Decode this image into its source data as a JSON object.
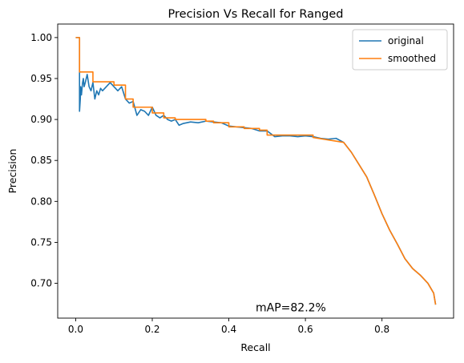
{
  "chart_data": {
    "type": "line",
    "title": "Precision Vs Recall for Ranged",
    "xlabel": "Recall",
    "ylabel": "Precision",
    "xlim": [
      -0.047,
      0.987
    ],
    "ylim": [
      0.6575,
      1.0165
    ],
    "x_ticks": [
      0.0,
      0.2,
      0.4,
      0.6,
      0.8
    ],
    "x_tick_labels": [
      "0.0",
      "0.2",
      "0.4",
      "0.6",
      "0.8"
    ],
    "y_ticks": [
      0.7,
      0.75,
      0.8,
      0.85,
      0.9,
      0.95,
      1.0
    ],
    "y_tick_labels": [
      "0.70",
      "0.75",
      "0.80",
      "0.85",
      "0.90",
      "0.95",
      "1.00"
    ],
    "grid": false,
    "legend_position": "top-right",
    "annotation": {
      "text": "mAP=82.2%",
      "x": 0.47,
      "y": 0.666
    },
    "series": [
      {
        "name": "original",
        "color": "#1f77b4",
        "x": [
          0.0,
          0.01,
          0.01,
          0.012,
          0.013,
          0.015,
          0.018,
          0.02,
          0.022,
          0.025,
          0.03,
          0.035,
          0.04,
          0.045,
          0.05,
          0.055,
          0.06,
          0.065,
          0.07,
          0.08,
          0.09,
          0.1,
          0.11,
          0.12,
          0.13,
          0.14,
          0.15,
          0.16,
          0.17,
          0.18,
          0.19,
          0.2,
          0.21,
          0.22,
          0.23,
          0.24,
          0.25,
          0.26,
          0.27,
          0.28,
          0.3,
          0.32,
          0.34,
          0.36,
          0.38,
          0.4,
          0.42,
          0.44,
          0.46,
          0.48,
          0.5,
          0.52,
          0.54,
          0.56,
          0.58,
          0.6,
          0.62,
          0.64,
          0.66,
          0.68,
          0.7,
          0.72,
          0.74,
          0.76,
          0.78,
          0.8,
          0.82,
          0.84,
          0.86,
          0.88,
          0.9,
          0.92,
          0.935,
          0.94
        ],
        "y": [
          1.0,
          1.0,
          0.91,
          0.925,
          0.94,
          0.93,
          0.945,
          0.95,
          0.94,
          0.945,
          0.955,
          0.94,
          0.935,
          0.945,
          0.925,
          0.935,
          0.93,
          0.938,
          0.935,
          0.94,
          0.945,
          0.94,
          0.935,
          0.94,
          0.925,
          0.92,
          0.922,
          0.905,
          0.912,
          0.91,
          0.905,
          0.915,
          0.905,
          0.902,
          0.905,
          0.9,
          0.898,
          0.9,
          0.893,
          0.895,
          0.897,
          0.896,
          0.898,
          0.897,
          0.896,
          0.892,
          0.891,
          0.89,
          0.889,
          0.886,
          0.886,
          0.879,
          0.88,
          0.88,
          0.879,
          0.88,
          0.879,
          0.877,
          0.876,
          0.877,
          0.872,
          0.86,
          0.845,
          0.83,
          0.808,
          0.785,
          0.765,
          0.748,
          0.73,
          0.718,
          0.71,
          0.7,
          0.688,
          0.674
        ]
      },
      {
        "name": "smoothed",
        "color": "#ff7f0e",
        "x": [
          0.0,
          0.01,
          0.01,
          0.045,
          0.045,
          0.1,
          0.1,
          0.13,
          0.13,
          0.15,
          0.15,
          0.2,
          0.2,
          0.23,
          0.23,
          0.26,
          0.26,
          0.34,
          0.34,
          0.36,
          0.36,
          0.4,
          0.4,
          0.44,
          0.44,
          0.48,
          0.48,
          0.5,
          0.5,
          0.62,
          0.62,
          0.7,
          0.72,
          0.74,
          0.76,
          0.78,
          0.8,
          0.82,
          0.84,
          0.86,
          0.88,
          0.9,
          0.92,
          0.935,
          0.94
        ],
        "y": [
          1.0,
          1.0,
          0.958,
          0.958,
          0.946,
          0.946,
          0.942,
          0.942,
          0.925,
          0.925,
          0.915,
          0.915,
          0.908,
          0.908,
          0.902,
          0.902,
          0.9,
          0.9,
          0.898,
          0.898,
          0.896,
          0.896,
          0.891,
          0.891,
          0.889,
          0.889,
          0.887,
          0.887,
          0.881,
          0.881,
          0.878,
          0.872,
          0.86,
          0.845,
          0.83,
          0.808,
          0.785,
          0.765,
          0.748,
          0.73,
          0.718,
          0.71,
          0.7,
          0.688,
          0.674
        ]
      }
    ]
  }
}
